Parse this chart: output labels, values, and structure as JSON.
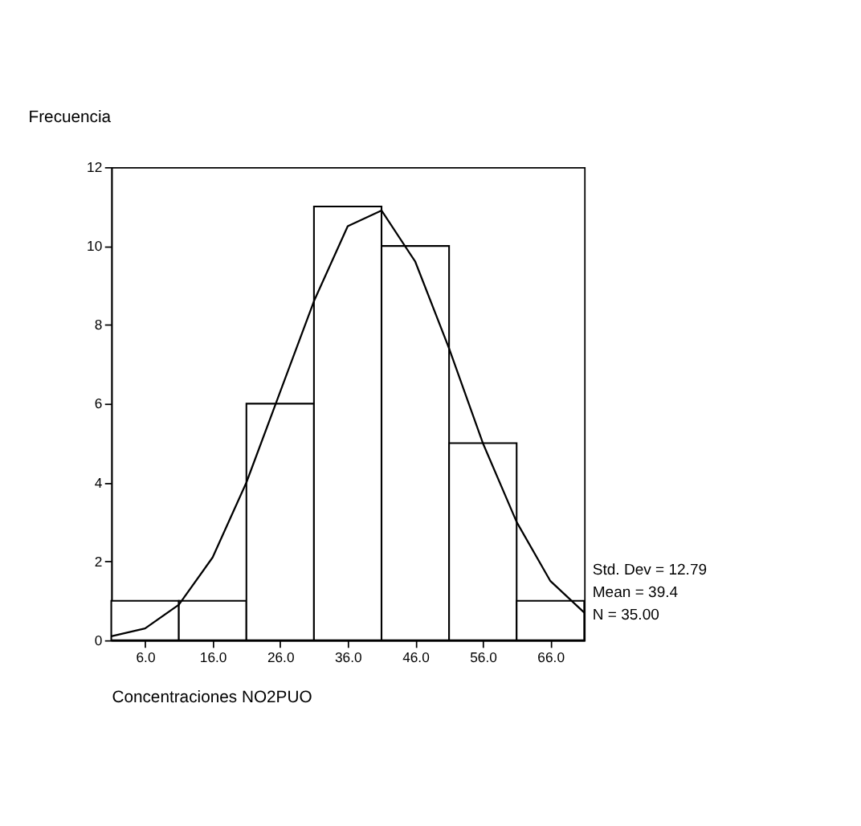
{
  "chart_data": {
    "type": "histogram",
    "ylabel": "Frecuencia",
    "xlabel": "Concentraciones NO2PUO",
    "bins": [
      1,
      11,
      21,
      31,
      41,
      51,
      61,
      71
    ],
    "values": [
      1,
      1,
      6,
      11,
      10,
      5,
      1
    ],
    "color": "#ffffff",
    "series": [
      {
        "type": "line",
        "color": "#000000",
        "x": [
          1,
          6,
          11,
          16,
          21,
          26,
          31,
          36,
          41,
          46,
          51,
          56,
          61,
          66,
          71
        ],
        "values": [
          0.1,
          0.3,
          0.9,
          2.1,
          4.0,
          6.3,
          8.6,
          10.5,
          10.9,
          9.6,
          7.4,
          5.0,
          3.0,
          1.5,
          0.7
        ]
      }
    ],
    "xlim": [
      1,
      71
    ],
    "xticks": [
      {
        "value": 6,
        "label": "6.0"
      },
      {
        "value": 16,
        "label": "16.0"
      },
      {
        "value": 26,
        "label": "26.0"
      },
      {
        "value": 36,
        "label": "36.0"
      },
      {
        "value": 46,
        "label": "46.0"
      },
      {
        "value": 56,
        "label": "56.0"
      },
      {
        "value": 66,
        "label": "66.0"
      }
    ],
    "ylim": [
      0,
      12
    ],
    "yticks": [
      0,
      2,
      4,
      6,
      8,
      10,
      12
    ],
    "annotations": [
      "Std. Dev = 12.79",
      "Mean = 39.4",
      "N = 35.00"
    ]
  }
}
